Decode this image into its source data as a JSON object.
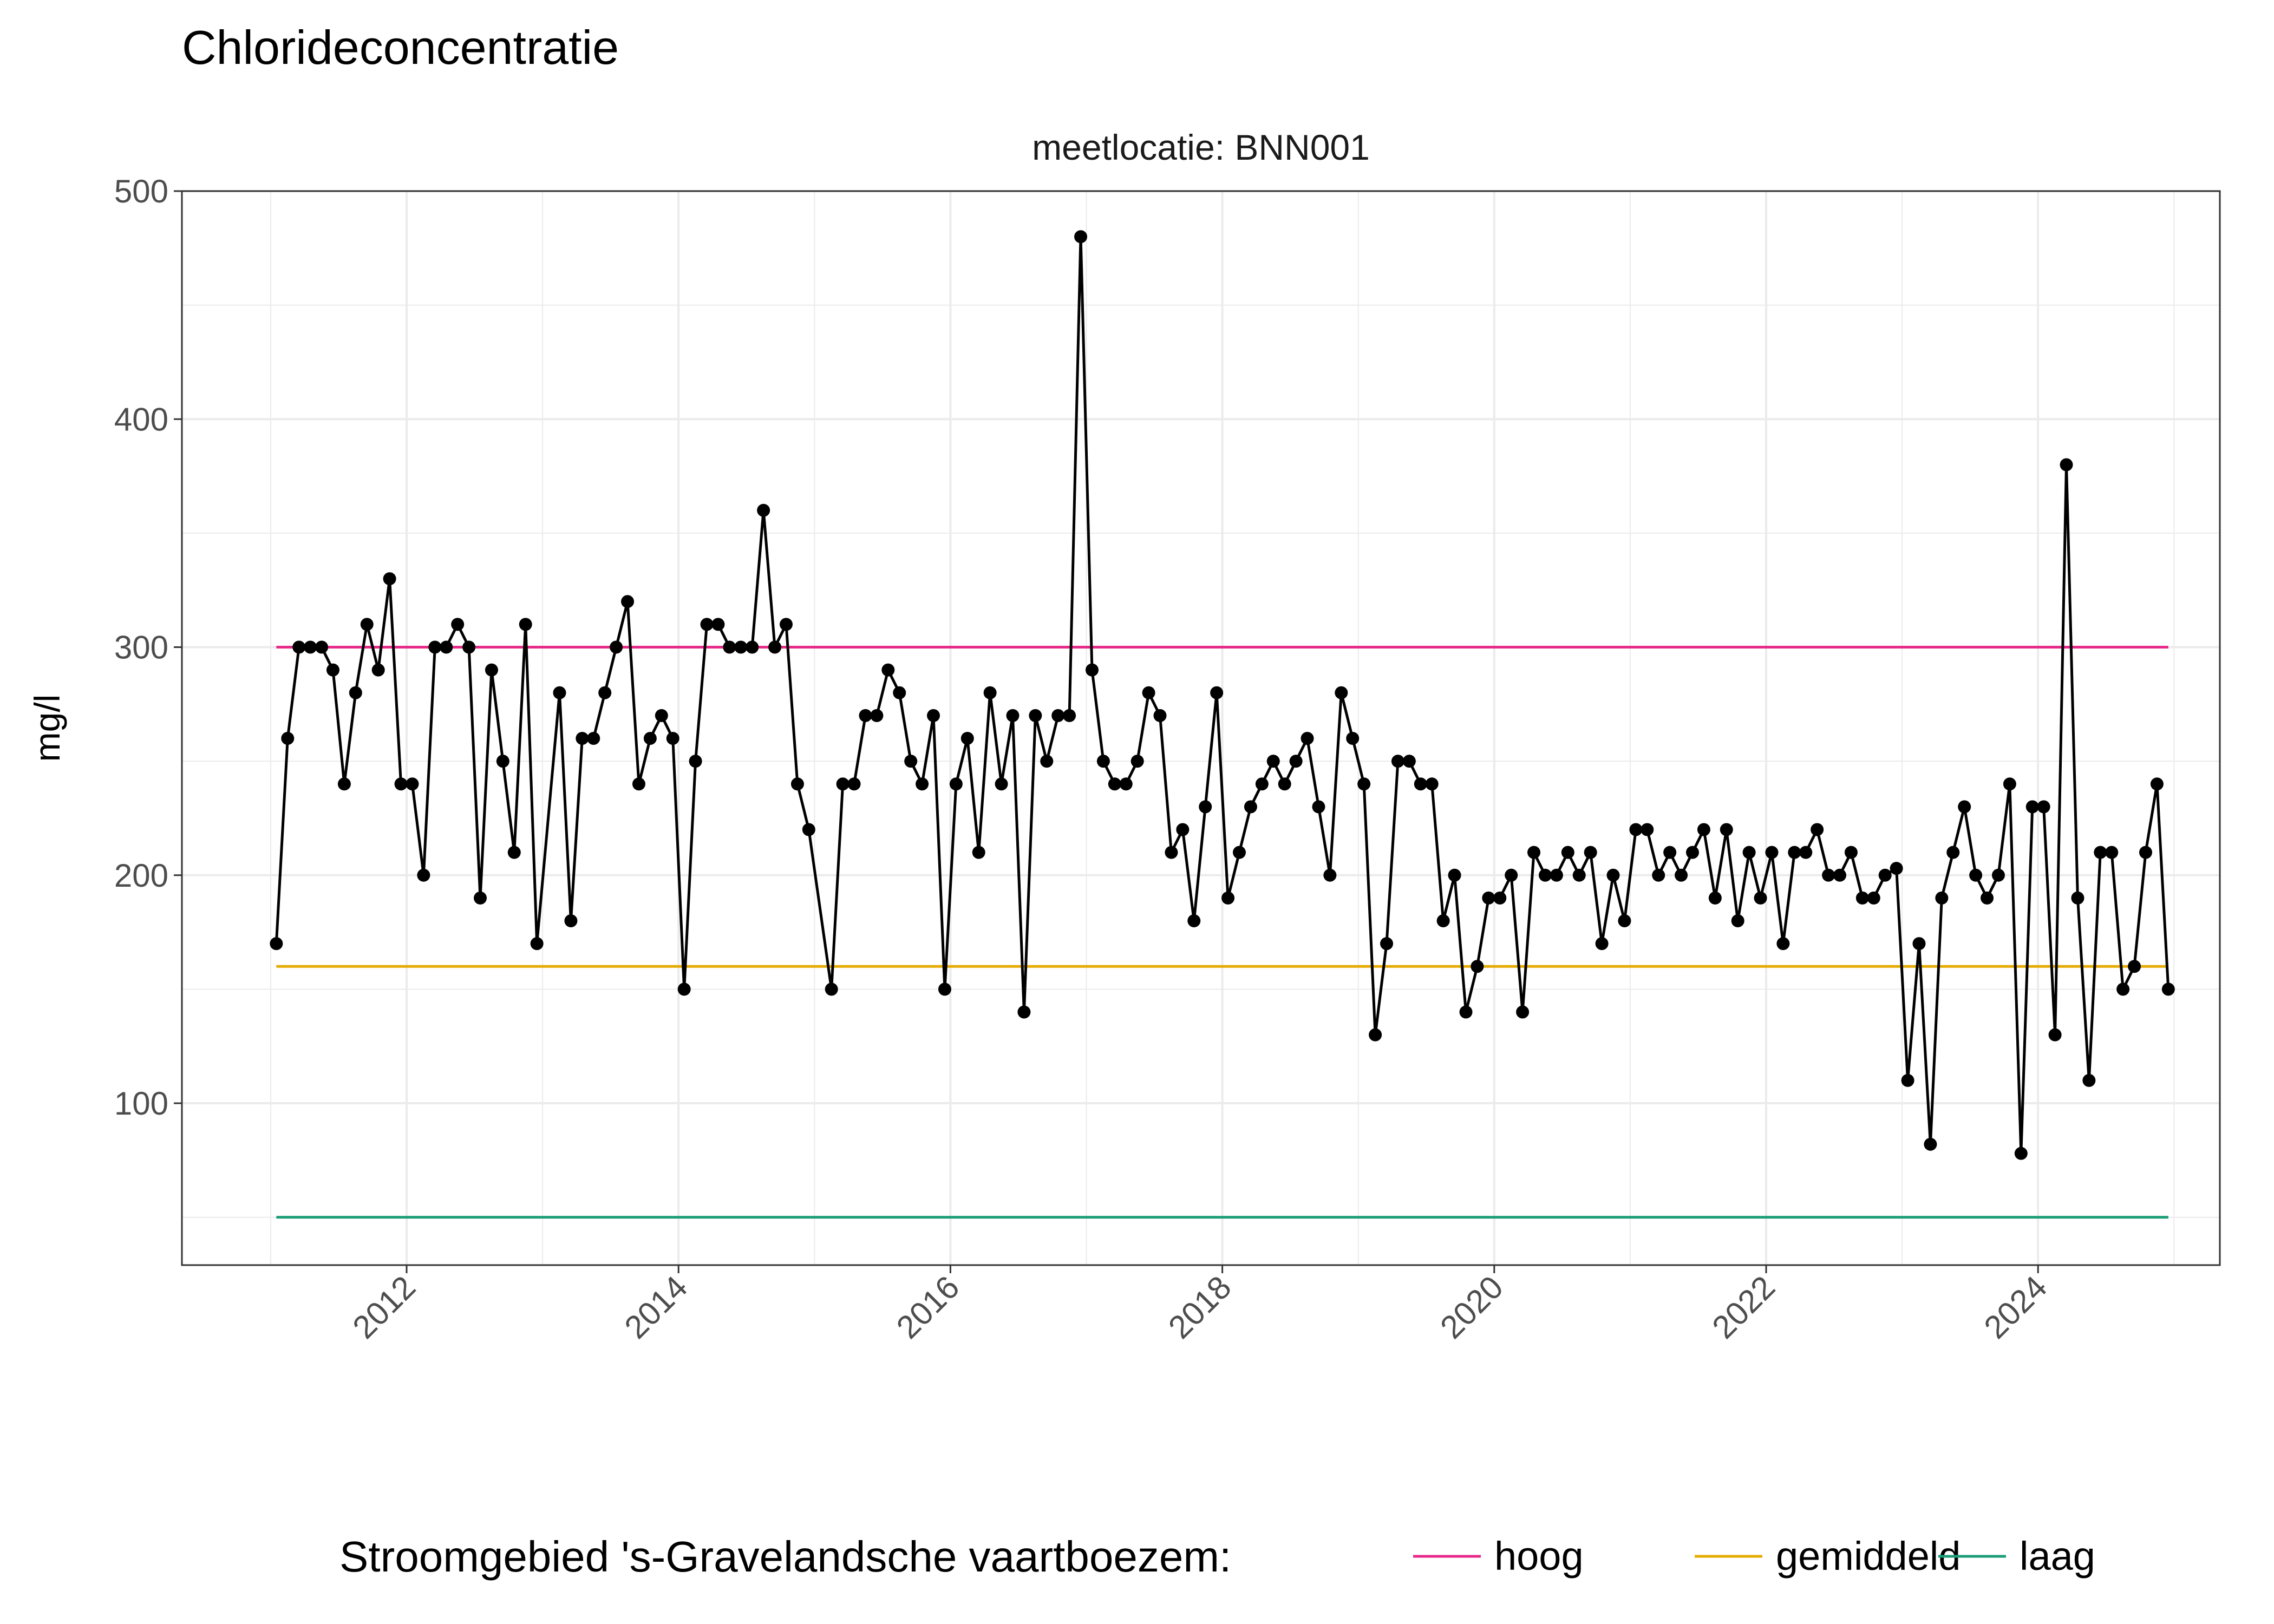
{
  "chart_data": {
    "type": "line",
    "title": "Chlorideconcentratie",
    "facet_label": "meetlocatie: BNN001",
    "xlabel": "",
    "ylabel": "mg/l",
    "ylim": [
      30,
      500
    ],
    "xlim": [
      2010.75,
      2025.25
    ],
    "yticks": [
      100,
      200,
      300,
      400,
      500
    ],
    "xticks": [
      "2012",
      "2014",
      "2016",
      "2018",
      "2020",
      "2022",
      "2024"
    ],
    "grid": true,
    "legend_title": "Stroomgebied 's-Gravelandsche vaartboezem:",
    "legend_position": "bottom",
    "reference_lines": [
      {
        "name": "hoog",
        "value": 300,
        "color": "#e7298a"
      },
      {
        "name": "gemiddeld",
        "value": 160,
        "color": "#e6ab02"
      },
      {
        "name": "laag",
        "value": 50,
        "color": "#1b9e77"
      }
    ],
    "series_color": "#000000",
    "x": [
      "2011-01",
      "2011-02",
      "2011-03",
      "2011-04",
      "2011-05",
      "2011-06",
      "2011-07",
      "2011-08",
      "2011-09",
      "2011-10",
      "2011-11",
      "2011-12",
      "2012-01",
      "2012-02",
      "2012-03",
      "2012-04",
      "2012-05",
      "2012-06",
      "2012-07",
      "2012-08",
      "2012-09",
      "2012-10",
      "2012-11",
      "2012-12",
      "2013-02",
      "2013-03",
      "2013-04",
      "2013-05",
      "2013-06",
      "2013-07",
      "2013-08",
      "2013-09",
      "2013-10",
      "2013-11",
      "2013-12",
      "2014-01",
      "2014-02",
      "2014-03",
      "2014-04",
      "2014-05",
      "2014-06",
      "2014-07",
      "2014-08",
      "2014-09",
      "2014-10",
      "2014-11",
      "2014-12",
      "2015-02",
      "2015-03",
      "2015-04",
      "2015-05",
      "2015-06",
      "2015-07",
      "2015-08",
      "2015-09",
      "2015-10",
      "2015-11",
      "2015-12",
      "2016-01",
      "2016-02",
      "2016-03",
      "2016-04",
      "2016-05",
      "2016-06",
      "2016-07",
      "2016-08",
      "2016-09",
      "2016-10",
      "2016-11",
      "2016-12",
      "2017-01",
      "2017-02",
      "2017-03",
      "2017-04",
      "2017-05",
      "2017-06",
      "2017-07",
      "2017-08",
      "2017-09",
      "2017-10",
      "2017-11",
      "2017-12",
      "2018-01",
      "2018-02",
      "2018-03",
      "2018-04",
      "2018-05",
      "2018-06",
      "2018-07",
      "2018-08",
      "2018-09",
      "2018-10",
      "2018-11",
      "2018-12",
      "2019-01",
      "2019-02",
      "2019-03",
      "2019-04",
      "2019-05",
      "2019-06",
      "2019-07",
      "2019-08",
      "2019-09",
      "2019-10",
      "2019-11",
      "2019-12",
      "2020-01",
      "2020-02",
      "2020-03",
      "2020-04",
      "2020-05",
      "2020-06",
      "2020-07",
      "2020-08",
      "2020-09",
      "2020-10",
      "2020-11",
      "2020-12",
      "2021-01",
      "2021-02",
      "2021-03",
      "2021-04",
      "2021-05",
      "2021-06",
      "2021-07",
      "2021-08",
      "2021-09",
      "2021-10",
      "2021-11",
      "2021-12",
      "2022-01",
      "2022-02",
      "2022-03",
      "2022-04",
      "2022-05",
      "2022-06",
      "2022-07",
      "2022-08",
      "2022-09",
      "2022-10",
      "2022-11",
      "2022-12",
      "2023-01",
      "2023-02",
      "2023-03",
      "2023-04",
      "2023-05",
      "2023-06",
      "2023-07",
      "2023-08",
      "2023-09",
      "2023-10",
      "2023-11",
      "2023-12",
      "2024-01",
      "2024-02",
      "2024-03",
      "2024-04",
      "2024-05",
      "2024-06",
      "2024-07",
      "2024-08",
      "2024-09",
      "2024-10",
      "2024-11",
      "2024-12"
    ],
    "values": [
      170,
      260,
      300,
      300,
      300,
      290,
      240,
      280,
      310,
      290,
      330,
      240,
      240,
      200,
      300,
      300,
      310,
      300,
      190,
      290,
      250,
      210,
      310,
      170,
      280,
      180,
      260,
      260,
      280,
      300,
      320,
      240,
      260,
      270,
      260,
      150,
      250,
      310,
      310,
      300,
      300,
      300,
      360,
      300,
      310,
      240,
      220,
      150,
      240,
      240,
      270,
      270,
      290,
      280,
      250,
      240,
      270,
      150,
      240,
      260,
      210,
      280,
      240,
      270,
      140,
      270,
      250,
      270,
      270,
      480,
      290,
      250,
      240,
      240,
      250,
      280,
      270,
      210,
      220,
      180,
      230,
      280,
      190,
      210,
      230,
      240,
      250,
      240,
      250,
      260,
      230,
      200,
      280,
      260,
      240,
      130,
      170,
      250,
      250,
      240,
      240,
      180,
      200,
      140,
      160,
      190,
      190,
      200,
      140,
      210,
      200,
      200,
      210,
      200,
      210,
      170,
      200,
      180,
      220,
      220,
      200,
      210,
      200,
      210,
      220,
      190,
      220,
      180,
      210,
      190,
      210,
      170,
      210,
      210,
      220,
      200,
      200,
      210,
      190,
      190,
      200,
      203,
      110,
      170,
      82,
      190,
      210,
      230,
      200,
      190,
      200,
      240,
      78,
      230,
      230,
      130,
      380,
      190,
      110,
      210,
      210,
      150,
      160,
      210,
      240,
      150
    ]
  }
}
